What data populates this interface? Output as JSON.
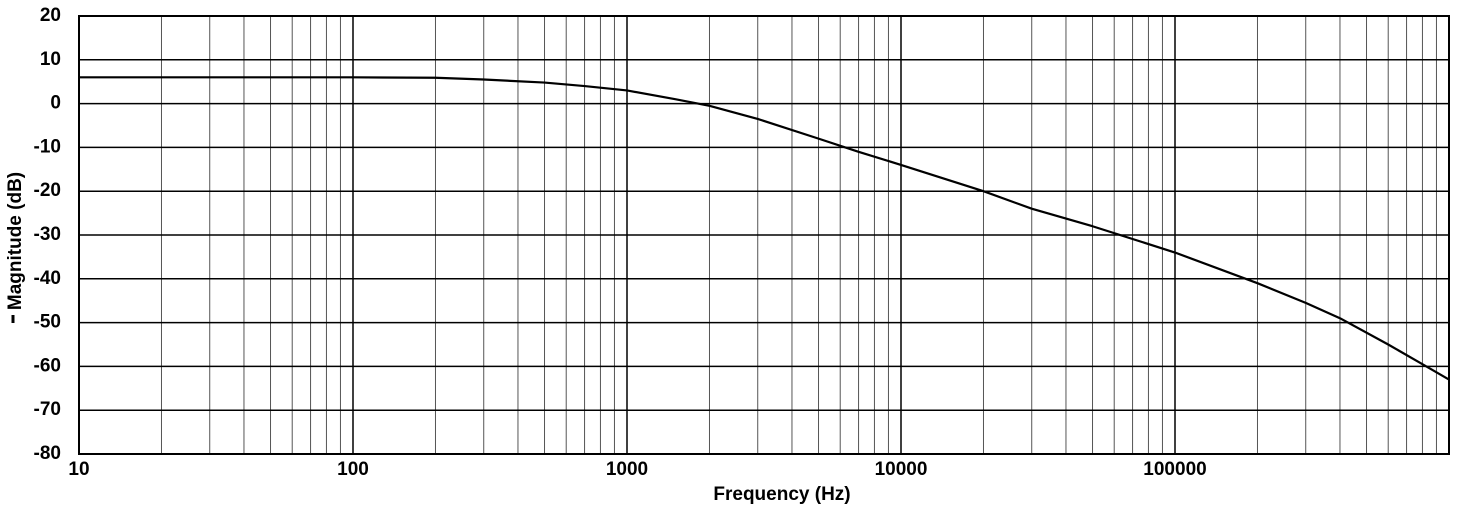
{
  "chart_data": {
    "type": "line",
    "xlabel": "Frequency (Hz)",
    "ylabel": "Magnitude (dB)",
    "x": [
      10,
      30,
      100,
      200,
      300,
      500,
      700,
      1000,
      1500,
      2000,
      3000,
      5000,
      7000,
      10000,
      20000,
      30000,
      50000,
      100000,
      200000,
      300000,
      400000,
      600000,
      800000,
      1000000
    ],
    "values": [
      6,
      6,
      6,
      5.9,
      5.5,
      4.8,
      4,
      3,
      1,
      -0.5,
      -3.5,
      -8,
      -11,
      -14,
      -20,
      -24,
      -28,
      -34,
      -41,
      -45.5,
      -49,
      -55,
      -59.5,
      -63
    ],
    "color": "#000000",
    "xscale": "log",
    "xlim": [
      10,
      1000000
    ],
    "xticks": [
      10,
      100,
      1000,
      10000,
      100000
    ],
    "ylim": [
      -80,
      20
    ],
    "yticks": [
      -80,
      -70,
      -60,
      -50,
      -40,
      -30,
      -20,
      -10,
      0,
      10,
      20
    ],
    "grid": true,
    "minor_grid": true
  }
}
